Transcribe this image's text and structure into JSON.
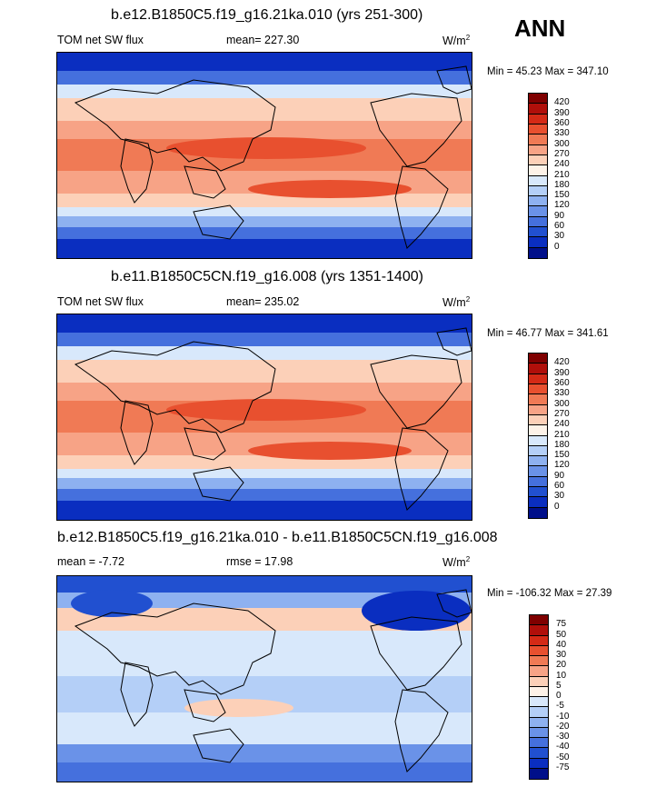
{
  "season": "ANN",
  "panels": [
    {
      "title": "b.e12.B1850C5.f19_g16.21ka.010 (yrs 251-300)",
      "left": "TOM net SW flux",
      "mid": "mean= 227.30",
      "units": "W/m",
      "units_sup": "2",
      "minmax": "Min =  45.23 Max = 347.10",
      "levels": [
        "420",
        "390",
        "360",
        "330",
        "300",
        "270",
        "240",
        "210",
        "180",
        "150",
        "120",
        "90",
        "60",
        "30",
        "0"
      ],
      "colors": [
        "#7f0000",
        "#b00f0a",
        "#d42a16",
        "#e8502f",
        "#f07a55",
        "#f7a386",
        "#fcd0b8",
        "#fdf2e8",
        "#d8e8fb",
        "#b4cff7",
        "#8eb1f0",
        "#6a92e8",
        "#4570dd",
        "#2150d0",
        "#0a2ec0",
        "#000f8a"
      ]
    },
    {
      "title": "b.e11.B1850C5CN.f19_g16.008 (yrs 1351-1400)",
      "left": "TOM net SW flux",
      "mid": "mean= 235.02",
      "units": "W/m",
      "units_sup": "2",
      "minmax": "Min =  46.77 Max = 341.61",
      "levels": [
        "420",
        "390",
        "360",
        "330",
        "300",
        "270",
        "240",
        "210",
        "180",
        "150",
        "120",
        "90",
        "60",
        "30",
        "0"
      ],
      "colors": [
        "#7f0000",
        "#b00f0a",
        "#d42a16",
        "#e8502f",
        "#f07a55",
        "#f7a386",
        "#fcd0b8",
        "#fdf2e8",
        "#d8e8fb",
        "#b4cff7",
        "#8eb1f0",
        "#6a92e8",
        "#4570dd",
        "#2150d0",
        "#0a2ec0",
        "#000f8a"
      ]
    },
    {
      "title": "b.e12.B1850C5.f19_g16.21ka.010 - b.e11.B1850C5CN.f19_g16.008",
      "left": "mean =  -7.72",
      "mid": "rmse =  17.98",
      "units": "W/m",
      "units_sup": "2",
      "minmax": "Min = -106.32 Max =  27.39",
      "levels": [
        "75",
        "50",
        "40",
        "30",
        "20",
        "10",
        "5",
        "0",
        "-5",
        "-10",
        "-20",
        "-30",
        "-40",
        "-50",
        "-75"
      ],
      "colors": [
        "#7f0000",
        "#b00f0a",
        "#d42a16",
        "#e8502f",
        "#f07a55",
        "#f7a386",
        "#fcd0b8",
        "#fdf2e8",
        "#d8e8fb",
        "#b4cff7",
        "#8eb1f0",
        "#6a92e8",
        "#4570dd",
        "#2150d0",
        "#0a2ec0",
        "#000f8a"
      ]
    }
  ]
}
